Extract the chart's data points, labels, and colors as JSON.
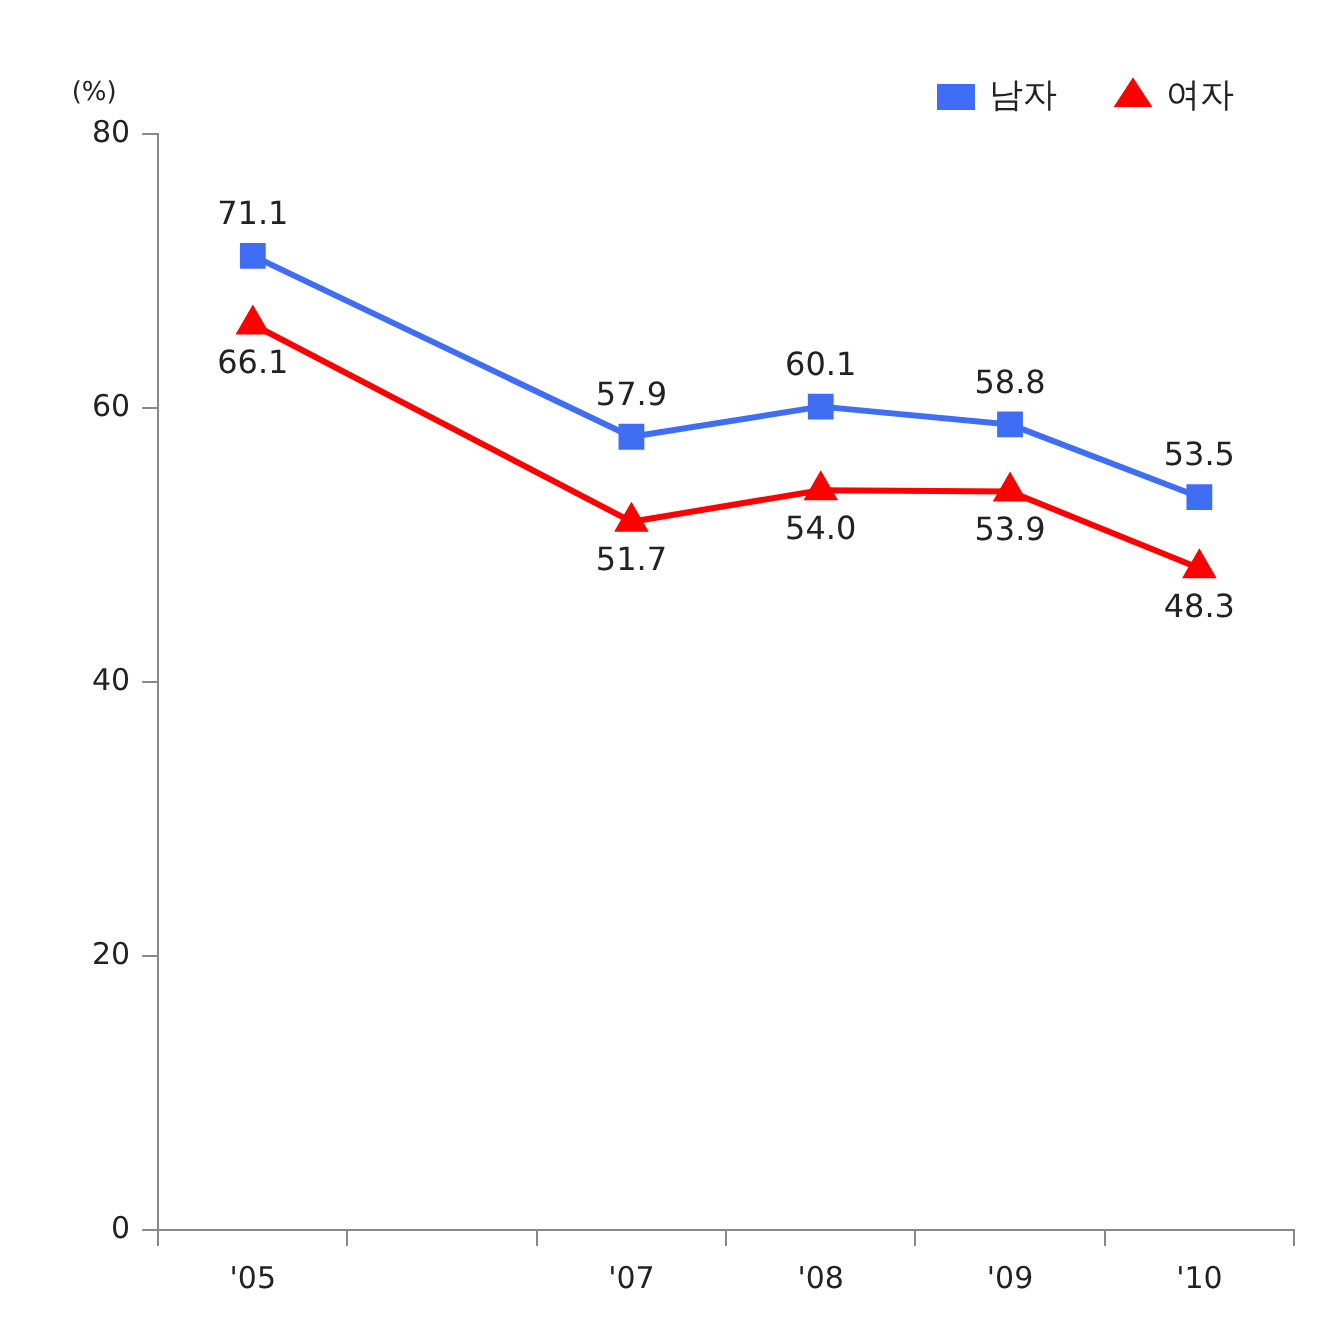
{
  "chart_data": {
    "type": "line",
    "ylabel": "(%)",
    "categories": [
      "'05",
      null,
      "'07",
      "'08",
      "'09",
      "'10"
    ],
    "series": [
      {
        "name": "남자",
        "color": "#3f6ef5",
        "marker": "square",
        "values": [
          71.1,
          null,
          57.9,
          60.1,
          58.8,
          53.5
        ],
        "value_labels": [
          "71.1",
          null,
          "57.9",
          "60.1",
          "58.8",
          "53.5"
        ]
      },
      {
        "name": "여자",
        "color": "#ff0000",
        "marker": "triangle",
        "values": [
          66.1,
          null,
          51.7,
          54.0,
          53.9,
          48.3
        ],
        "value_labels": [
          "66.1",
          null,
          "51.7",
          "54.0",
          "53.9",
          "48.3"
        ]
      }
    ],
    "ylim": [
      0,
      80
    ],
    "yticks": [
      0,
      20,
      40,
      60,
      80
    ],
    "grid": false,
    "legend": "top right",
    "line_style": "solid"
  }
}
